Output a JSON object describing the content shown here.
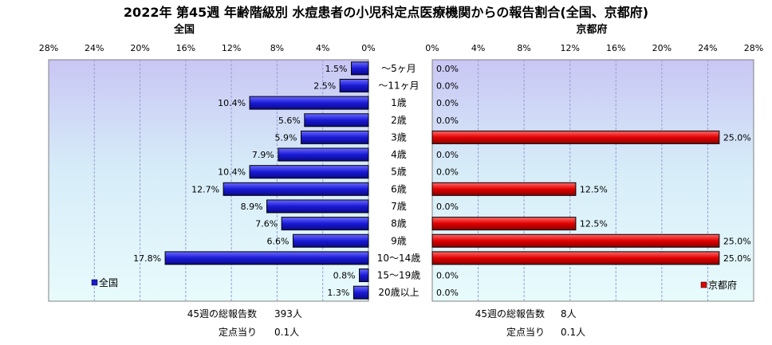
{
  "title": "2022年 第45週 年齢階級別 水痘患者の小児科定点医療機関からの報告割合(全国、京都府)",
  "left": {
    "panel_title": "全国",
    "legend": "全国",
    "summary": [
      {
        "label": "45週の総報告数",
        "value": "393人"
      },
      {
        "label": "定点当り",
        "value": "0.1人"
      }
    ]
  },
  "right": {
    "panel_title": "京都府",
    "legend": "京都府",
    "summary": [
      {
        "label": "45週の総報告数",
        "value": "8人"
      },
      {
        "label": "定点当り",
        "value": "0.1人"
      }
    ]
  },
  "chart_data": {
    "type": "bar",
    "orientation": "horizontal",
    "categories": [
      "〜5ヶ月",
      "〜11ヶ月",
      "1歳",
      "2歳",
      "3歳",
      "4歳",
      "5歳",
      "6歳",
      "7歳",
      "8歳",
      "9歳",
      "10〜14歳",
      "15〜19歳",
      "20歳以上"
    ],
    "xlim": [
      0,
      28
    ],
    "ticks": [
      "0%",
      "4%",
      "8%",
      "12%",
      "16%",
      "20%",
      "24%",
      "28%"
    ],
    "series": [
      {
        "name": "全国",
        "color": "#1a1ad6",
        "values": [
          1.5,
          2.5,
          10.4,
          5.6,
          5.9,
          7.9,
          10.4,
          12.7,
          8.9,
          7.6,
          6.6,
          17.8,
          0.8,
          1.3
        ],
        "labels": [
          "1.5%",
          "2.5%",
          "10.4%",
          "5.6%",
          "5.9%",
          "7.9%",
          "10.4%",
          "12.7%",
          "8.9%",
          "7.6%",
          "6.6%",
          "17.8%",
          "0.8%",
          "1.3%"
        ]
      },
      {
        "name": "京都府",
        "color": "#e00000",
        "values": [
          0,
          0,
          0,
          0,
          25.0,
          0,
          0,
          12.5,
          0,
          12.5,
          25.0,
          25.0,
          0,
          0
        ],
        "labels": [
          "0.0%",
          "0.0%",
          "0.0%",
          "0.0%",
          "25.0%",
          "0.0%",
          "0.0%",
          "12.5%",
          "0.0%",
          "12.5%",
          "25.0%",
          "25.0%",
          "0.0%",
          "0.0%"
        ]
      }
    ],
    "grid": true,
    "legend_position": "bottom-left (全国), bottom-right (京都府)"
  }
}
